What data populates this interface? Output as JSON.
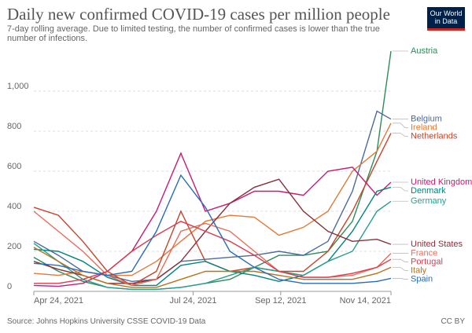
{
  "chart_data": {
    "type": "line",
    "title": "Daily new confirmed COVID-19 cases per million people",
    "subtitle": "7-day rolling average. Due to limited testing, the number of confirmed cases is lower than the true number of infections.",
    "logo": "Our World in Data",
    "source": "Source: Johns Hopkins University CSSE COVID-19 Data",
    "license": "CC BY",
    "x": [
      "2021-04-24",
      "2021-05-08",
      "2021-05-22",
      "2021-06-05",
      "2021-06-19",
      "2021-07-03",
      "2021-07-17",
      "2021-07-31",
      "2021-08-14",
      "2021-08-28",
      "2021-09-11",
      "2021-09-25",
      "2021-10-09",
      "2021-10-23",
      "2021-11-06",
      "2021-11-14"
    ],
    "xlim": [
      "2021-04-24",
      "2021-11-14"
    ],
    "xticks": [
      {
        "value": "2021-04-24",
        "label": "Apr 24, 2021"
      },
      {
        "value": "2021-07-24",
        "label": "Jul 24, 2021"
      },
      {
        "value": "2021-09-12",
        "label": "Sep 12, 2021"
      },
      {
        "value": "2021-11-14",
        "label": "Nov 14, 2021"
      }
    ],
    "ylim": [
      0,
      1200
    ],
    "yticks": [
      0,
      200,
      400,
      600,
      800,
      {
        "value": 1000,
        "label": "1,000"
      }
    ],
    "grid": true,
    "series": [
      {
        "name": "Austria",
        "color": "#2e8b57",
        "values": [
          170,
          100,
          50,
          20,
          10,
          10,
          20,
          40,
          60,
          120,
          180,
          180,
          200,
          350,
          700,
          1200
        ]
      },
      {
        "name": "Belgium",
        "color": "#4c6a9c",
        "values": [
          250,
          180,
          100,
          80,
          50,
          60,
          150,
          160,
          170,
          180,
          200,
          180,
          250,
          500,
          900,
          860
        ]
      },
      {
        "name": "Ireland",
        "color": "#e07b39",
        "values": [
          90,
          80,
          100,
          80,
          80,
          150,
          250,
          350,
          380,
          370,
          280,
          320,
          400,
          600,
          700,
          840
        ]
      },
      {
        "name": "Netherlands",
        "color": "#c4452b",
        "values": [
          420,
          380,
          250,
          100,
          30,
          100,
          400,
          150,
          100,
          120,
          100,
          100,
          200,
          400,
          650,
          790
        ]
      },
      {
        "name": "United Kingdom",
        "color": "#c41e72",
        "values": [
          30,
          25,
          40,
          100,
          200,
          400,
          690,
          400,
          440,
          500,
          500,
          480,
          600,
          620,
          480,
          545
        ]
      },
      {
        "name": "Denmark",
        "color": "#00847e",
        "values": [
          210,
          200,
          150,
          70,
          30,
          30,
          130,
          150,
          100,
          80,
          50,
          80,
          150,
          300,
          500,
          520
        ]
      },
      {
        "name": "Germany",
        "color": "#2a9d8f",
        "values": [
          240,
          150,
          60,
          20,
          10,
          10,
          20,
          40,
          80,
          120,
          100,
          80,
          150,
          200,
          400,
          450
        ]
      },
      {
        "name": "United States",
        "color": "#883039",
        "values": [
          150,
          110,
          80,
          40,
          40,
          60,
          150,
          300,
          440,
          520,
          560,
          400,
          300,
          250,
          260,
          235
        ]
      },
      {
        "name": "France",
        "color": "#e56e5a",
        "values": [
          400,
          300,
          200,
          80,
          30,
          60,
          300,
          340,
          300,
          200,
          100,
          70,
          70,
          80,
          120,
          190
        ]
      },
      {
        "name": "Portugal",
        "color": "#d73c50",
        "values": [
          40,
          40,
          60,
          100,
          200,
          280,
          350,
          300,
          250,
          180,
          100,
          70,
          70,
          90,
          120,
          160
        ]
      },
      {
        "name": "Italy",
        "color": "#b5731e",
        "values": [
          220,
          150,
          80,
          40,
          20,
          20,
          60,
          100,
          100,
          100,
          80,
          60,
          60,
          60,
          90,
          120
        ]
      },
      {
        "name": "Spain",
        "color": "#286bbb",
        "values": [
          140,
          130,
          100,
          80,
          100,
          300,
          580,
          420,
          200,
          120,
          60,
          40,
          40,
          40,
          50,
          65
        ]
      }
    ]
  }
}
